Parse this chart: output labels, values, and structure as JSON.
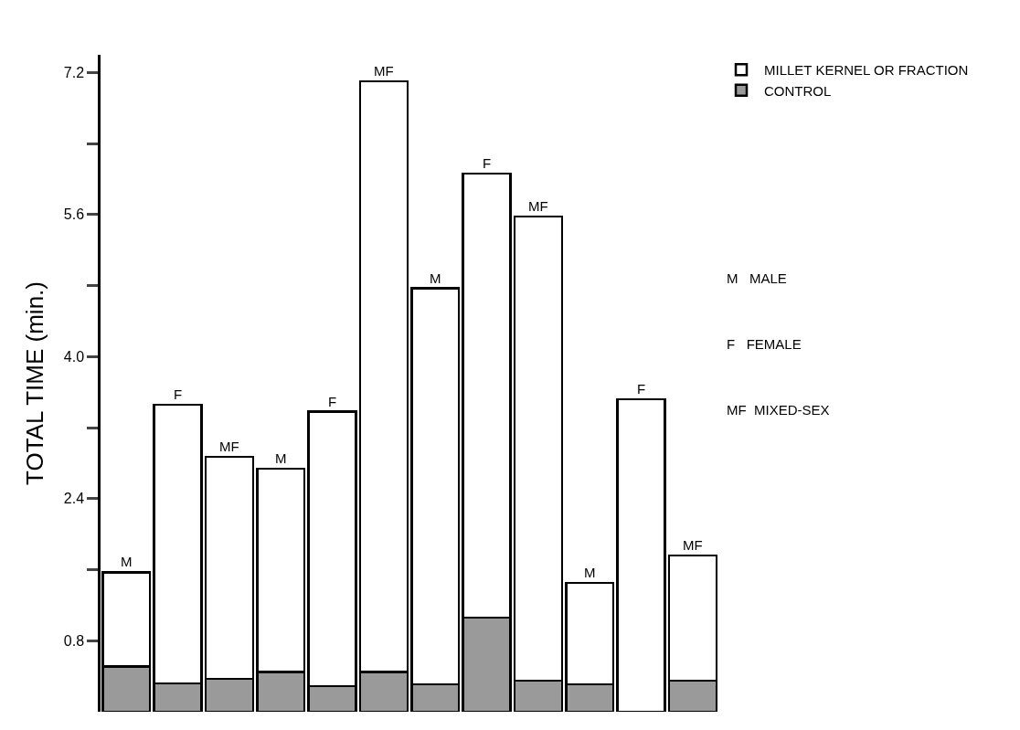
{
  "chart_data": {
    "type": "bar",
    "stacked": true,
    "ylabel": "TOTAL TIME (min.)",
    "categories": [
      null,
      null,
      null,
      null,
      null,
      null,
      null,
      null,
      null,
      null,
      null,
      null
    ],
    "series": [
      {
        "name": "CONTROL",
        "color": "#9a9a9a",
        "values": [
          0.51,
          0.32,
          0.37,
          0.45,
          0.29,
          0.45,
          0.31,
          1.06,
          0.35,
          0.31,
          0,
          0.35
        ]
      },
      {
        "name": "MILLET KERNEL OR FRACTION",
        "color": "#ffffff",
        "values": [
          1.06,
          3.14,
          2.5,
          2.29,
          3.09,
          6.65,
          4.46,
          5.0,
          5.23,
          1.14,
          3.52,
          1.41
        ],
        "value_labels": [
          "M",
          "F",
          "MF",
          "M",
          "F",
          "MF",
          "M",
          "F",
          "MF",
          "M",
          "F",
          "MF"
        ]
      }
    ],
    "ylim": [
      0,
      7.4
    ],
    "yticks": [
      {
        "value": 0.8,
        "label": "0.8"
      },
      {
        "value": 1.6,
        "label": null
      },
      {
        "value": 2.4,
        "label": "2.4"
      },
      {
        "value": 3.2,
        "label": null
      },
      {
        "value": 4,
        "label": "4.0"
      },
      {
        "value": 4.8,
        "label": null
      },
      {
        "value": 5.6,
        "label": "5.6"
      },
      {
        "value": 6.4,
        "label": null
      },
      {
        "value": 7.2,
        "label": "7.2"
      }
    ],
    "grid": false,
    "legend": "top right",
    "tick_labels": "y",
    "annotations": [
      "M   MALE",
      "F   FEMALE",
      "MF  MIXED-SEX"
    ]
  }
}
